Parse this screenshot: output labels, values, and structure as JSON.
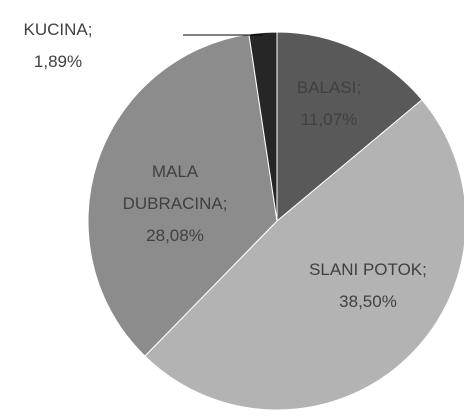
{
  "chart_data": {
    "type": "pie",
    "categories": [
      "BALASI",
      "SLANI POTOK",
      "MALA DUBRACINA",
      "KUCINA"
    ],
    "values": [
      11.07,
      38.5,
      28.08,
      1.89
    ],
    "value_labels": [
      "11,07%",
      "38,50%",
      "28,08%",
      "1,89%"
    ],
    "label_separator": ";",
    "colors": [
      "#595959",
      "#b3b3b3",
      "#8c8c8c",
      "#262626"
    ]
  }
}
